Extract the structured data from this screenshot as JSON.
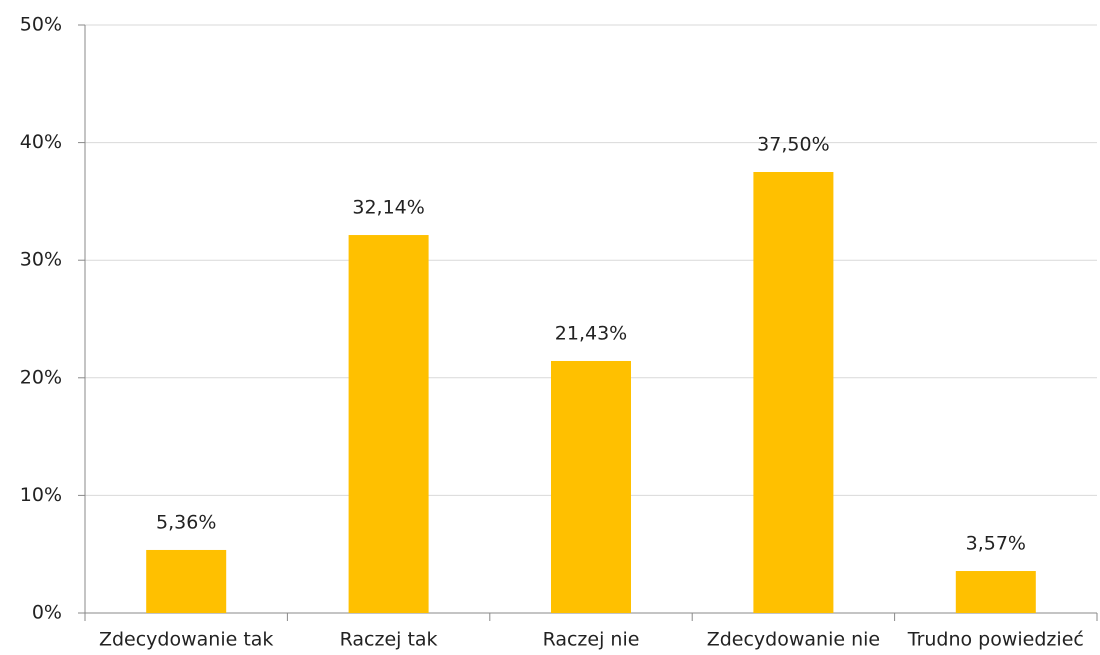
{
  "chart_data": {
    "type": "bar",
    "categories": [
      "Zdecydowanie tak",
      "Raczej tak",
      "Raczej nie",
      "Zdecydowanie nie",
      "Trudno powiedzieć"
    ],
    "values": [
      5.36,
      32.14,
      21.43,
      37.5,
      3.57
    ],
    "value_labels": [
      "5,36%",
      "32,14%",
      "21,43%",
      "37,50%",
      "3,57%"
    ],
    "color": "#ffc000",
    "ylim": [
      0,
      50
    ],
    "yticks": [
      {
        "value": 0,
        "label": "0%"
      },
      {
        "value": 10,
        "label": "10%"
      },
      {
        "value": 20,
        "label": "20%"
      },
      {
        "value": 30,
        "label": "30%"
      },
      {
        "value": 40,
        "label": "40%"
      },
      {
        "value": 50,
        "label": "50%"
      }
    ],
    "grid": true
  }
}
